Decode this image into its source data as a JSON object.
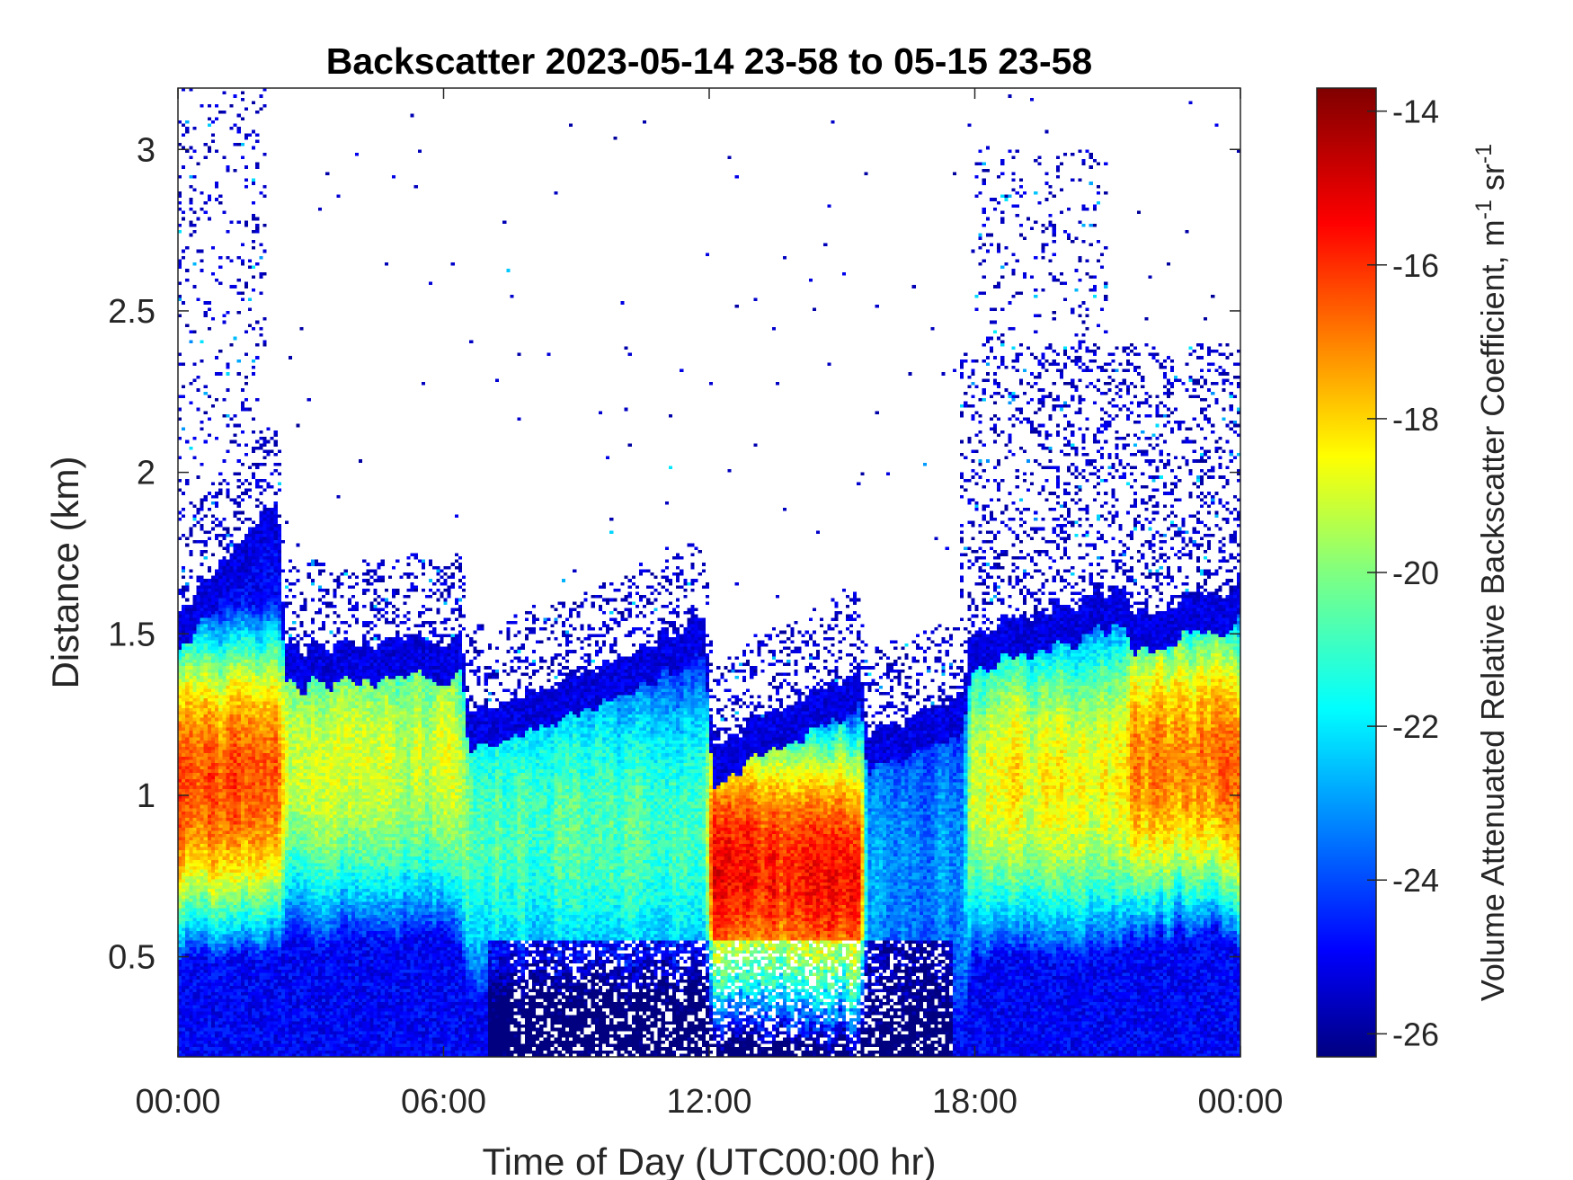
{
  "chart_data": {
    "type": "heatmap",
    "title": "Backscatter 2023-05-14 23-58 to 05-15 23-58",
    "xlabel": "Time of Day (UTC00:00 hr)",
    "ylabel": "Distance (km)",
    "x_ticks": [
      "00:00",
      "06:00",
      "12:00",
      "18:00",
      "00:00"
    ],
    "x_tick_hours": [
      0,
      6,
      12,
      18,
      24
    ],
    "xlim_hours": [
      0,
      24
    ],
    "y_ticks": [
      "0.5",
      "1",
      "1.5",
      "2",
      "2.5",
      "3"
    ],
    "y_tick_values": [
      0.5,
      1,
      1.5,
      2,
      2.5,
      3
    ],
    "ylim_km": [
      0.19,
      3.19
    ],
    "colorbar": {
      "label": "Volume Attenuated Relative Backscatter Coefficient, m",
      "label_sup1": "-1",
      "label_mid": " sr",
      "label_sup2": "-1",
      "ticks": [
        "-14",
        "-16",
        "-18",
        "-20",
        "-22",
        "-24",
        "-26"
      ],
      "tick_values": [
        -14,
        -16,
        -18,
        -20,
        -22,
        -24,
        -26
      ],
      "clim": [
        -26.3,
        -13.7
      ],
      "colormap": "jet"
    },
    "features": [
      {
        "hour_range": [
          0,
          2.3
        ],
        "max_height_km": [
          1.55,
          1.95
        ],
        "peak_height_km": 1.05,
        "peak_value": -16.3
      },
      {
        "hour_range": [
          2.3,
          6.5
        ],
        "max_height_km": [
          1.45,
          1.5
        ],
        "peak_height_km": 1.1,
        "peak_value": -19
      },
      {
        "hour_range": [
          6.5,
          12
        ],
        "max_height_km": [
          1.25,
          1.55
        ],
        "peak_height_km": 0.9,
        "peak_value": -20.5
      },
      {
        "hour_range": [
          12,
          15.5
        ],
        "max_height_km": [
          1.15,
          1.4
        ],
        "peak_height_km": 0.75,
        "peak_value": -15.5
      },
      {
        "hour_range": [
          15.5,
          17.8
        ],
        "max_height_km": [
          1.2,
          1.3
        ],
        "peak_height_km": 0.8,
        "peak_value": -23
      },
      {
        "hour_range": [
          17.8,
          21.5
        ],
        "max_height_km": [
          1.5,
          1.65
        ],
        "peak_height_km": 1.05,
        "peak_value": -18.5
      },
      {
        "hour_range": [
          21.5,
          24
        ],
        "max_height_km": [
          1.55,
          1.65
        ],
        "peak_height_km": 1.1,
        "peak_value": -16.8
      }
    ],
    "clear_air_value": null,
    "grid": false
  }
}
